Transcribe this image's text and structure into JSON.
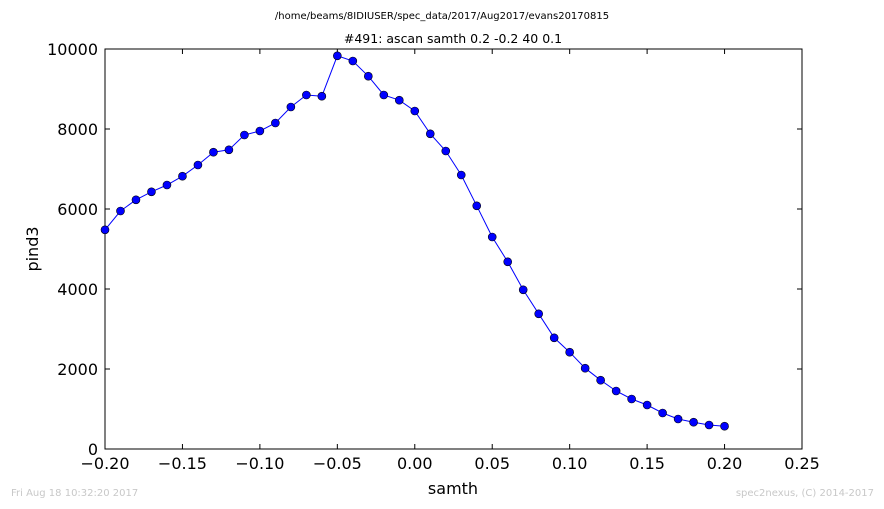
{
  "suptitle": "/home/beams/8IDIUSER/spec_data/2017/Aug2017/evans20170815",
  "footer_left": "Fri Aug 18 10:32:20 2017",
  "footer_right": "spec2nexus, (C) 2014-2017",
  "chart_data": {
    "type": "line",
    "title": "#491: ascan  samth 0.2 -0.2  40 0.1",
    "xlabel": "samth",
    "ylabel": "pind3",
    "xlim": [
      -0.2,
      0.25
    ],
    "ylim": [
      0,
      10000
    ],
    "xticks": [
      "−0.20",
      "−0.15",
      "−0.10",
      "−0.05",
      "0.00",
      "0.05",
      "0.10",
      "0.15",
      "0.20",
      "0.25"
    ],
    "xtick_values": [
      -0.2,
      -0.15,
      -0.1,
      -0.05,
      0.0,
      0.05,
      0.1,
      0.15,
      0.2,
      0.25
    ],
    "yticks": [
      "0",
      "2000",
      "4000",
      "6000",
      "8000",
      "10000"
    ],
    "ytick_values": [
      0,
      2000,
      4000,
      6000,
      8000,
      10000
    ],
    "grid": false,
    "line_color": "#0000ff",
    "marker_color": "#0000ff",
    "x": [
      -0.2,
      -0.19,
      -0.18,
      -0.17,
      -0.16,
      -0.15,
      -0.14,
      -0.13,
      -0.12,
      -0.11,
      -0.1,
      -0.09,
      -0.08,
      -0.07,
      -0.06,
      -0.05,
      -0.04,
      -0.03,
      -0.02,
      -0.01,
      0.0,
      0.01,
      0.02,
      0.03,
      0.04,
      0.05,
      0.06,
      0.07,
      0.08,
      0.09,
      0.1,
      0.11,
      0.12,
      0.13,
      0.14,
      0.15,
      0.16,
      0.17,
      0.18,
      0.19,
      0.2
    ],
    "y": [
      5480,
      5950,
      6230,
      6430,
      6600,
      6820,
      7100,
      7420,
      7480,
      7850,
      7950,
      8150,
      8550,
      8850,
      8820,
      9830,
      9700,
      9320,
      8850,
      8720,
      8450,
      7880,
      7450,
      6850,
      6080,
      5300,
      4680,
      3980,
      3380,
      2780,
      2420,
      2020,
      1720,
      1450,
      1250,
      1100,
      900,
      750,
      670,
      600,
      570
    ]
  }
}
